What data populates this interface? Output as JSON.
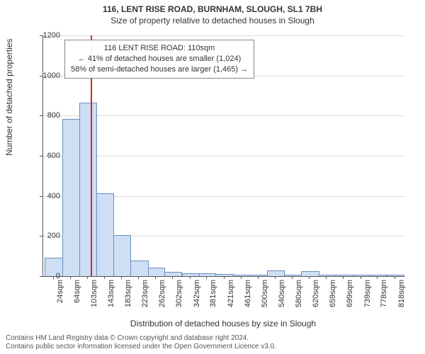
{
  "title": "116, LENT RISE ROAD, BURNHAM, SLOUGH, SL1 7BH",
  "subtitle": "Size of property relative to detached houses in Slough",
  "y_axis_label": "Number of detached properties",
  "x_axis_label": "Distribution of detached houses by size in Slough",
  "footer_line1": "Contains HM Land Registry data © Crown copyright and database right 2024.",
  "footer_line2": "Contains public sector information licensed under the Open Government Licence v3.0.",
  "annotation": {
    "line1": "116 LENT RISE ROAD: 110sqm",
    "line2": "← 41% of detached houses are smaller (1,024)",
    "line3": "58% of semi-detached houses are larger (1,465) →"
  },
  "chart": {
    "type": "histogram",
    "ylim": [
      0,
      1200
    ],
    "ytick_step": 200,
    "y_ticks": [
      0,
      200,
      400,
      600,
      800,
      1000,
      1200
    ],
    "x_min": 0,
    "x_max": 840,
    "x_tick_labels": [
      "24sqm",
      "64sqm",
      "103sqm",
      "143sqm",
      "183sqm",
      "223sqm",
      "262sqm",
      "302sqm",
      "342sqm",
      "381sqm",
      "421sqm",
      "461sqm",
      "500sqm",
      "540sqm",
      "580sqm",
      "620sqm",
      "659sqm",
      "699sqm",
      "739sqm",
      "778sqm",
      "818sqm"
    ],
    "x_tick_positions": [
      24,
      64,
      103,
      143,
      183,
      223,
      262,
      302,
      342,
      381,
      421,
      461,
      500,
      540,
      580,
      620,
      659,
      699,
      739,
      778,
      818
    ],
    "bar_fill": "#cedef4",
    "bar_border": "#6b8fbf",
    "grid_color": "#d9d9d9",
    "marker_color": "#d62728",
    "marker_x": 110,
    "background_color": "#ffffff",
    "title_fontsize": 12,
    "subtitle_fontsize": 12,
    "axis_label_fontsize": 12,
    "tick_fontsize": 11,
    "annotation_fontsize": 11,
    "footer_fontsize": 10,
    "footer_color": "#555555",
    "bars": [
      {
        "x0": 4,
        "x1": 44,
        "count": 90
      },
      {
        "x0": 44,
        "x1": 84,
        "count": 780
      },
      {
        "x0": 84,
        "x1": 123,
        "count": 860
      },
      {
        "x0": 123,
        "x1": 163,
        "count": 410
      },
      {
        "x0": 163,
        "x1": 203,
        "count": 200
      },
      {
        "x0": 203,
        "x1": 243,
        "count": 75
      },
      {
        "x0": 243,
        "x1": 282,
        "count": 40
      },
      {
        "x0": 282,
        "x1": 322,
        "count": 18
      },
      {
        "x0": 322,
        "x1": 362,
        "count": 12
      },
      {
        "x0": 362,
        "x1": 401,
        "count": 10
      },
      {
        "x0": 401,
        "x1": 441,
        "count": 6
      },
      {
        "x0": 441,
        "x1": 481,
        "count": 2
      },
      {
        "x0": 481,
        "x1": 520,
        "count": 2
      },
      {
        "x0": 520,
        "x1": 560,
        "count": 25
      },
      {
        "x0": 560,
        "x1": 600,
        "count": 3
      },
      {
        "x0": 600,
        "x1": 640,
        "count": 20
      },
      {
        "x0": 640,
        "x1": 679,
        "count": 3
      },
      {
        "x0": 679,
        "x1": 719,
        "count": 2
      },
      {
        "x0": 719,
        "x1": 759,
        "count": 2
      },
      {
        "x0": 759,
        "x1": 798,
        "count": 2
      },
      {
        "x0": 798,
        "x1": 838,
        "count": 2
      }
    ]
  }
}
